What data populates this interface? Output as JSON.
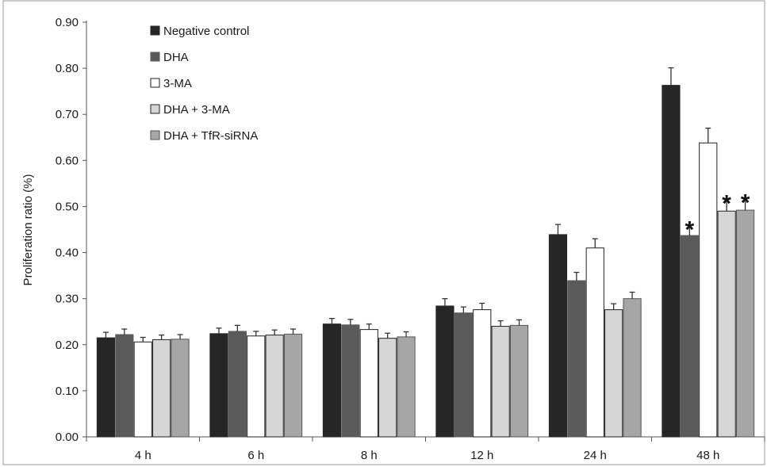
{
  "chart_data": {
    "type": "bar",
    "title": "",
    "xlabel": "",
    "ylabel": "Proliferation ratio (%)",
    "ylim": [
      0,
      0.9
    ],
    "yticks": [
      "0.00",
      "0.10",
      "0.20",
      "0.30",
      "0.40",
      "0.50",
      "0.60",
      "0.70",
      "0.80",
      "0.90"
    ],
    "categories": [
      "4 h",
      "6 h",
      "8 h",
      "12 h",
      "24 h",
      "48 h"
    ],
    "grid": false,
    "legend_position": "top-left",
    "series": [
      {
        "name": "Negative control",
        "color": "#262626",
        "stroke": "#262626",
        "values": [
          0.215,
          0.224,
          0.245,
          0.284,
          0.439,
          0.763
        ],
        "errors": [
          0.012,
          0.012,
          0.012,
          0.016,
          0.022,
          0.038
        ],
        "significant": [
          false,
          false,
          false,
          false,
          false,
          false
        ]
      },
      {
        "name": "DHA",
        "color": "#5a5a5a",
        "stroke": "#5a5a5a",
        "values": [
          0.222,
          0.229,
          0.243,
          0.269,
          0.339,
          0.437
        ],
        "errors": [
          0.012,
          0.013,
          0.012,
          0.013,
          0.018,
          0.022
        ],
        "significant": [
          false,
          false,
          false,
          false,
          false,
          true
        ]
      },
      {
        "name": "3-MA",
        "color": "#ffffff",
        "stroke": "#222222",
        "values": [
          0.206,
          0.219,
          0.233,
          0.276,
          0.41,
          0.638
        ],
        "errors": [
          0.01,
          0.01,
          0.012,
          0.014,
          0.02,
          0.032
        ],
        "significant": [
          false,
          false,
          false,
          false,
          false,
          false
        ]
      },
      {
        "name": "DHA + 3-MA",
        "color": "#d6d6d6",
        "stroke": "#222222",
        "values": [
          0.211,
          0.221,
          0.214,
          0.24,
          0.276,
          0.49
        ],
        "errors": [
          0.01,
          0.011,
          0.011,
          0.012,
          0.013,
          0.025
        ],
        "significant": [
          false,
          false,
          false,
          false,
          false,
          true
        ]
      },
      {
        "name": "DHA + TfR-siRNA",
        "color": "#a6a6a6",
        "stroke": "#555555",
        "values": [
          0.212,
          0.223,
          0.217,
          0.242,
          0.3,
          0.492
        ],
        "errors": [
          0.01,
          0.011,
          0.011,
          0.012,
          0.014,
          0.025
        ],
        "significant": [
          false,
          false,
          false,
          false,
          false,
          true
        ]
      }
    ],
    "significance_marker": "*"
  }
}
